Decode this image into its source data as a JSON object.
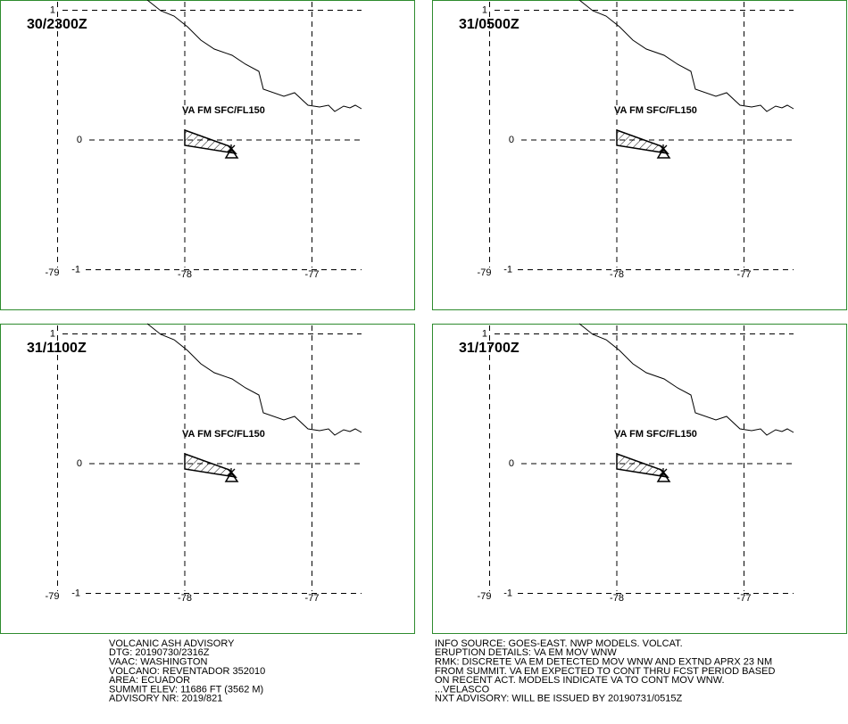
{
  "panels": [
    {
      "time": "30/2300Z",
      "label": "VA FM SFC/FL150",
      "lat_ticks": [
        1,
        0,
        -1
      ],
      "lon_ticks": [
        -79,
        -78,
        -77
      ]
    },
    {
      "time": "31/0500Z",
      "label": "VA FM SFC/FL150",
      "lat_ticks": [
        1,
        0,
        -1
      ],
      "lon_ticks": [
        -79,
        -78,
        -77
      ]
    },
    {
      "time": "31/1100Z",
      "label": "VA FM SFC/FL150",
      "lat_ticks": [
        1,
        0,
        -1
      ],
      "lon_ticks": [
        -79,
        -78,
        -77
      ]
    },
    {
      "time": "31/1700Z",
      "label": "VA FM SFC/FL150",
      "lat_ticks": [
        1,
        0,
        -1
      ],
      "lon_ticks": [
        -79,
        -78,
        -77
      ]
    }
  ],
  "advisory": {
    "left": [
      "VOLCANIC ASH ADVISORY",
      "DTG: 20190730/2316Z",
      "VAAC: WASHINGTON",
      "VOLCANO: REVENTADOR 352010",
      "AREA: ECUADOR",
      "SUMMIT ELEV: 11686 FT (3562 M)",
      "ADVISORY NR: 2019/821"
    ],
    "right": [
      "INFO SOURCE: GOES-EAST. NWP MODELS. VOLCAT.",
      "ERUPTION DETAILS: VA EM MOV WNW",
      "RMK: DISCRETE VA EM DETECTED MOV WNW AND EXTND APRX 23 NM",
      "FROM SUMMIT. VA EM EXPECTED TO CONT THRU FCST PERIOD BASED",
      "ON RECENT ACT. MODELS INDICATE VA TO CONT MOV WNW.",
      "...VELASCO",
      "NXT ADVISORY: WILL BE ISSUED BY 20190731/0515Z"
    ]
  }
}
